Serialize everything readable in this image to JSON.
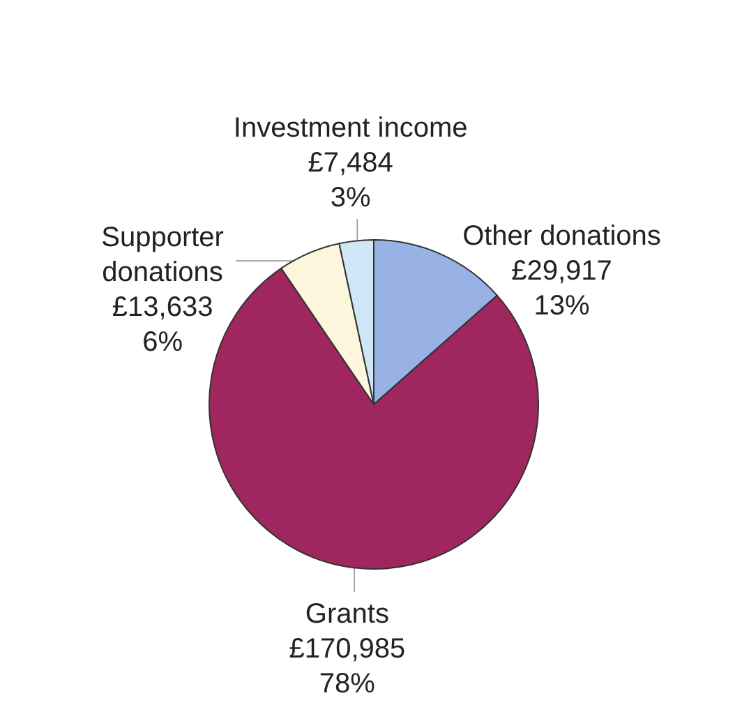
{
  "chart_data": {
    "type": "pie",
    "categories": [
      "Other donations",
      "Grants",
      "Supporter donations",
      "Investment income"
    ],
    "values": [
      29917,
      170985,
      13633,
      7484
    ],
    "value_labels": [
      "£29,917\n13%",
      "£170,985\n78%",
      "£13,633\n6%",
      "£7,484\n3%"
    ],
    "colors": [
      "#98b2e6",
      "#a02660",
      "#fcf7dc",
      "#cfe7f6"
    ]
  }
}
